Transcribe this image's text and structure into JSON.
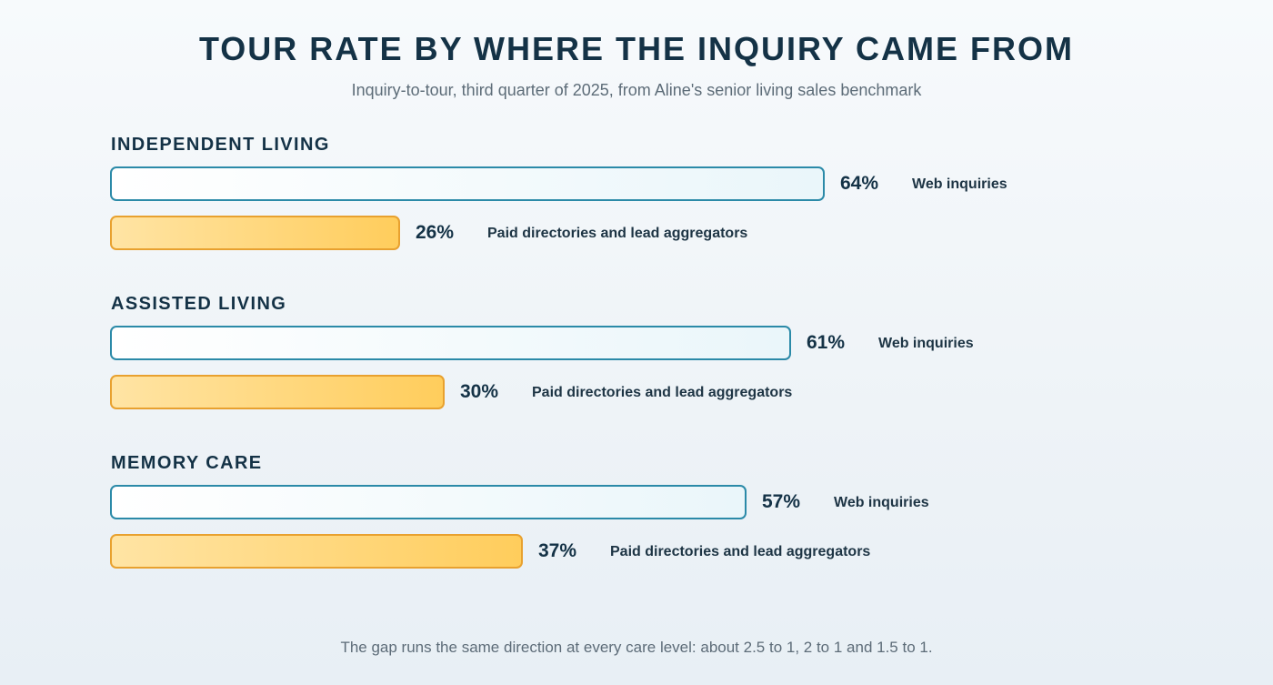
{
  "header": {
    "title": "TOUR RATE BY WHERE THE INQUIRY CAME FROM",
    "subtitle": "Inquiry-to-tour, third quarter of 2025, from Aline's senior living sales benchmark"
  },
  "footnote": "The gap runs the same direction at every care level: about 2.5 to 1, 2 to 1 and 1.5 to 1.",
  "colors": {
    "web_fill": "#eaf6fa",
    "web_border": "#2b8aa8",
    "paid_fill": "#ffcd5c",
    "paid_border": "#e8a12f",
    "text": "#143246"
  },
  "chart_data": {
    "type": "bar",
    "orientation": "horizontal",
    "title": "TOUR RATE BY WHERE THE INQUIRY CAME FROM",
    "subtitle": "Inquiry-to-tour, third quarter of 2025, from Aline's senior living sales benchmark",
    "unit": "%",
    "xlim": [
      0,
      100
    ],
    "grid": false,
    "categories": [
      "INDEPENDENT LIVING",
      "ASSISTED LIVING",
      "MEMORY CARE"
    ],
    "series": [
      {
        "name": "Web inquiries",
        "values": [
          64,
          61,
          57
        ],
        "labels": [
          "64%",
          "61%",
          "57%"
        ]
      },
      {
        "name": "Paid directories and lead aggregators",
        "values": [
          26,
          30,
          37
        ],
        "labels": [
          "26%",
          "30%",
          "37%"
        ]
      }
    ]
  }
}
